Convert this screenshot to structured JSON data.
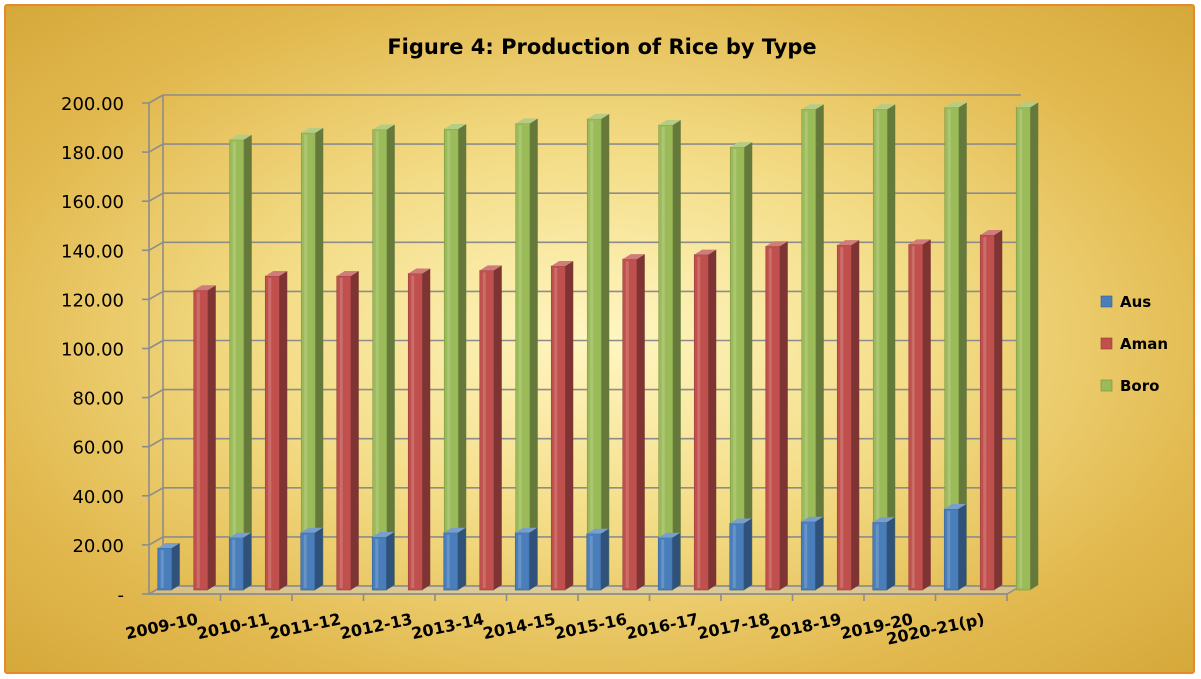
{
  "chart_data": {
    "type": "bar",
    "title": "Figure 4: Production of Rice by Type",
    "xlabel": "",
    "ylabel": "",
    "ylim": [
      0,
      200
    ],
    "y_ticks": [
      "-",
      "20.00",
      "40.00",
      "60.00",
      "80.00",
      "100.00",
      "120.00",
      "140.00",
      "160.00",
      "180.00",
      "200.00"
    ],
    "grid": true,
    "legend_position": "right",
    "categories": [
      "2009-10",
      "2010-11",
      "2011-12",
      "2012-13",
      "2013-14",
      "2014-15",
      "2015-16",
      "2016-17",
      "2017-18",
      "2018-19",
      "2019-20",
      "2020-21(p)"
    ],
    "series": [
      {
        "name": "Aus",
        "color": "#4a7ebb",
        "values": [
          17.1,
          21.3,
          23.3,
          21.6,
          23.3,
          23.3,
          22.9,
          21.3,
          27.1,
          27.8,
          27.6,
          33.0
        ]
      },
      {
        "name": "Aman",
        "color": "#c0504d",
        "values": [
          122.1,
          127.9,
          127.9,
          128.9,
          130.2,
          132.0,
          134.8,
          136.6,
          140.0,
          140.5,
          140.8,
          144.6
        ]
      },
      {
        "name": "Boro",
        "color": "#9bbb59",
        "values": [
          183.4,
          186.2,
          187.6,
          187.8,
          190.0,
          191.9,
          189.4,
          180.4,
          195.8,
          195.8,
          196.6,
          196.6
        ]
      }
    ]
  }
}
